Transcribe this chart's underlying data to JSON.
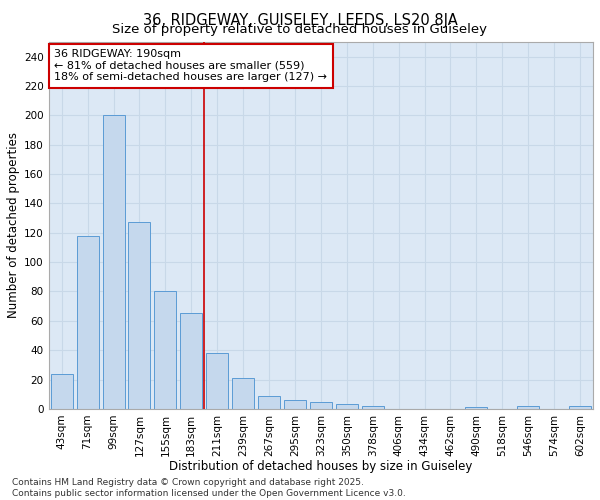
{
  "title1": "36, RIDGEWAY, GUISELEY, LEEDS, LS20 8JA",
  "title2": "Size of property relative to detached houses in Guiseley",
  "xlabel": "Distribution of detached houses by size in Guiseley",
  "ylabel": "Number of detached properties",
  "categories": [
    "43sqm",
    "71sqm",
    "99sqm",
    "127sqm",
    "155sqm",
    "183sqm",
    "211sqm",
    "239sqm",
    "267sqm",
    "295sqm",
    "323sqm",
    "350sqm",
    "378sqm",
    "406sqm",
    "434sqm",
    "462sqm",
    "490sqm",
    "518sqm",
    "546sqm",
    "574sqm",
    "602sqm"
  ],
  "values": [
    24,
    118,
    200,
    127,
    80,
    65,
    38,
    21,
    9,
    6,
    5,
    3,
    2,
    0,
    0,
    0,
    1,
    0,
    2,
    0,
    2
  ],
  "bar_color": "#c5d8ed",
  "bar_edge_color": "#5b9bd5",
  "vline_x": 5.5,
  "vline_color": "#cc0000",
  "annotation_text": "36 RIDGEWAY: 190sqm\n← 81% of detached houses are smaller (559)\n18% of semi-detached houses are larger (127) →",
  "annotation_box_color": "#ffffff",
  "annotation_box_edge": "#cc0000",
  "ylim": [
    0,
    250
  ],
  "yticks": [
    0,
    20,
    40,
    60,
    80,
    100,
    120,
    140,
    160,
    180,
    200,
    220,
    240
  ],
  "grid_color": "#c8d8e8",
  "background_color": "#dce8f5",
  "footer_text": "Contains HM Land Registry data © Crown copyright and database right 2025.\nContains public sector information licensed under the Open Government Licence v3.0.",
  "title_fontsize": 10.5,
  "subtitle_fontsize": 9.5,
  "axis_label_fontsize": 8.5,
  "tick_fontsize": 7.5,
  "annotation_fontsize": 8,
  "footer_fontsize": 6.5
}
